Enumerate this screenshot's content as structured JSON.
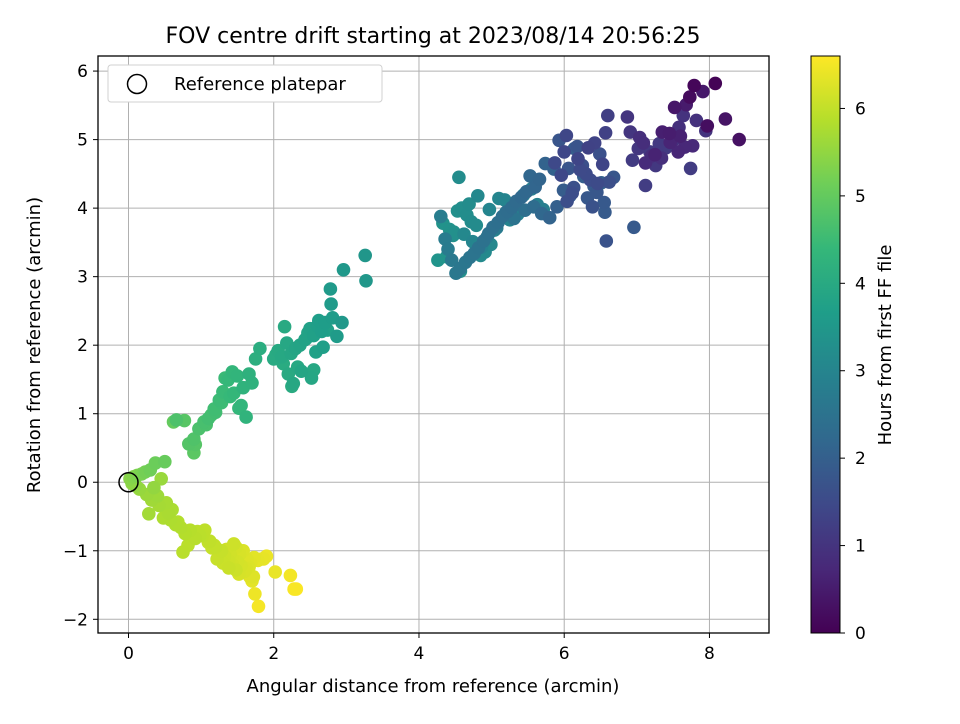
{
  "chart_data": {
    "type": "scatter",
    "title": "FOV centre drift starting at 2023/08/14 20:56:25",
    "xlabel": "Angular distance from reference (arcmin)",
    "ylabel": "Rotation from reference (arcmin)",
    "xlim": [
      -0.42,
      8.82
    ],
    "ylim": [
      -2.2,
      6.22
    ],
    "xticks": [
      "0",
      "2",
      "4",
      "6",
      "8"
    ],
    "yticks": [
      "−2",
      "−1",
      "0",
      "1",
      "2",
      "3",
      "4",
      "5",
      "6"
    ],
    "grid": true,
    "legend": {
      "placement": "top-left",
      "entries": [
        "Reference platepar"
      ]
    },
    "reference_point": {
      "label": "Reference platepar",
      "x": 0,
      "y": 0
    },
    "colorbar": {
      "label": "Hours from first FF file",
      "range": [
        0,
        6.6
      ],
      "ticks": [
        "0",
        "1",
        "2",
        "3",
        "4",
        "5",
        "6"
      ],
      "colormap": "viridis"
    },
    "series": [
      {
        "x": [
          8.08,
          7.79,
          7.73,
          7.97,
          8.41,
          8.22,
          7.52,
          7.91,
          7.68,
          7.45,
          7.35,
          7.6,
          7.25,
          7.46,
          7.57,
          7.66,
          7.77,
          7.12,
          7.2,
          7.09,
          7.04,
          7.34,
          7.58,
          7.51,
          7.82,
          7.64,
          7.95,
          6.87,
          6.91,
          7.02,
          7.26,
          7.18,
          7.31,
          7.4,
          6.94,
          7.74,
          7.12
        ],
        "y": [
          5.82,
          5.79,
          5.62,
          5.2,
          5.0,
          5.3,
          5.47,
          5.7,
          5.51,
          5.09,
          5.11,
          5.05,
          4.78,
          4.96,
          4.82,
          4.89,
          4.91,
          4.66,
          4.76,
          4.95,
          5.03,
          4.73,
          5.18,
          5.0,
          5.28,
          5.35,
          5.13,
          5.33,
          5.11,
          4.87,
          4.62,
          4.82,
          4.94,
          4.88,
          4.7,
          4.58,
          4.33
        ],
        "hours": [
          0.05,
          0.1,
          0.18,
          0.24,
          0.3,
          0.35,
          0.4,
          0.44,
          0.48,
          0.52,
          0.56,
          0.6,
          0.64,
          0.68,
          0.72,
          0.74,
          0.76,
          0.8,
          0.84,
          0.86,
          0.88,
          0.9,
          0.92,
          0.94,
          0.96,
          0.98,
          1.0,
          1.02,
          1.04,
          1.06,
          1.08,
          1.1,
          1.12,
          1.14,
          1.16,
          1.18,
          1.2
        ]
      },
      {
        "x": [
          6.6,
          6.57,
          6.33,
          6.42,
          6.53,
          6.19,
          6.03,
          6.0,
          5.96,
          5.87,
          6.22,
          6.3,
          6.46,
          6.36,
          6.11,
          6.04,
          6.62,
          6.49,
          6.25,
          6.13,
          6.39,
          6.58,
          6.18,
          5.93,
          6.06,
          6.68,
          6.45,
          6.32,
          6.55,
          6.96,
          6.56,
          6.41,
          6.14,
          5.99,
          6.08,
          6.27,
          6.51,
          5.9
        ],
        "y": [
          5.35,
          5.1,
          4.88,
          4.95,
          4.64,
          4.72,
          5.06,
          4.82,
          4.48,
          4.66,
          4.56,
          4.5,
          4.36,
          4.41,
          4.22,
          4.1,
          4.38,
          4.79,
          4.62,
          4.3,
          4.02,
          3.52,
          4.9,
          4.99,
          4.58,
          4.45,
          4.23,
          4.15,
          4.08,
          3.72,
          3.94,
          4.32,
          4.87,
          4.26,
          4.18,
          4.46,
          4.37,
          4.02
        ],
        "hours": [
          1.25,
          1.28,
          1.31,
          1.34,
          1.36,
          1.38,
          1.4,
          1.42,
          1.44,
          1.46,
          1.48,
          1.5,
          1.52,
          1.54,
          1.56,
          1.58,
          1.6,
          1.62,
          1.64,
          1.66,
          1.68,
          1.7,
          1.72,
          1.74,
          1.76,
          1.78,
          1.8,
          1.82,
          1.84,
          1.86,
          1.88,
          1.9,
          1.92,
          1.94,
          1.96,
          1.98,
          2.0,
          2.02
        ]
      },
      {
        "x": [
          5.86,
          5.74,
          5.66,
          5.6,
          5.53,
          5.48,
          5.41,
          5.34,
          5.28,
          5.22,
          5.15,
          5.09,
          5.02,
          4.96,
          4.89,
          4.82,
          4.76,
          4.7,
          4.64,
          4.57,
          4.51,
          4.45,
          4.4,
          4.36,
          4.3,
          5.71,
          5.63,
          5.55,
          5.44,
          5.36,
          5.25,
          5.18,
          5.1,
          5.04,
          4.99,
          4.91,
          4.85,
          4.79,
          4.72,
          4.66,
          4.59,
          4.53,
          4.48,
          4.42,
          4.33,
          4.26,
          5.8,
          5.69,
          5.58,
          5.46,
          5.31,
          5.2,
          5.07,
          4.94,
          4.86,
          4.74,
          4.62,
          4.55,
          4.47,
          4.38,
          4.57,
          4.69,
          4.81,
          4.97
        ],
        "y": [
          4.57,
          4.65,
          4.42,
          4.31,
          4.47,
          4.24,
          4.16,
          4.1,
          4.01,
          3.95,
          3.88,
          3.79,
          3.72,
          3.63,
          3.52,
          3.42,
          3.34,
          3.28,
          3.21,
          3.12,
          3.05,
          3.24,
          3.4,
          3.55,
          3.88,
          3.98,
          4.05,
          4.28,
          4.19,
          3.91,
          3.83,
          4.12,
          4.14,
          3.68,
          3.47,
          3.36,
          3.31,
          3.75,
          3.8,
          3.9,
          4.0,
          3.96,
          3.65,
          3.69,
          3.78,
          3.24,
          3.86,
          3.92,
          4.02,
          3.97,
          3.85,
          3.94,
          3.71,
          3.58,
          3.43,
          3.51,
          3.62,
          4.45,
          3.6,
          3.29,
          3.08,
          4.06,
          4.18,
          3.98
        ],
        "hours": [
          2.06,
          2.09,
          2.12,
          2.15,
          2.18,
          2.21,
          2.24,
          2.27,
          2.3,
          2.33,
          2.36,
          2.39,
          2.42,
          2.45,
          2.48,
          2.51,
          2.54,
          2.57,
          2.6,
          2.63,
          2.66,
          2.69,
          2.72,
          2.75,
          2.78,
          2.81,
          2.84,
          2.87,
          2.9,
          2.93,
          2.96,
          2.99,
          3.02,
          3.05,
          3.08,
          3.11,
          3.14,
          3.17,
          3.2,
          3.23,
          3.26,
          3.29,
          3.32,
          3.35,
          3.38,
          3.41,
          2.1,
          2.2,
          2.3,
          2.4,
          2.5,
          2.6,
          2.7,
          2.8,
          2.9,
          3.0,
          3.1,
          3.2,
          3.3,
          3.4,
          3.3,
          3.2,
          3.1,
          3.0
        ]
      },
      {
        "x": [
          3.26,
          3.27,
          2.96,
          2.78,
          2.79,
          2.81,
          2.71,
          2.66,
          2.6,
          2.55,
          2.5,
          2.43,
          2.36,
          2.3,
          2.24,
          2.18,
          2.11,
          2.06,
          2.0,
          2.94,
          2.87,
          2.68,
          2.58,
          2.47,
          2.38,
          2.27,
          2.2,
          2.13,
          2.03,
          2.52,
          2.62,
          2.74,
          2.45,
          2.33,
          2.25,
          2.15,
          2.55
        ],
        "y": [
          3.31,
          2.94,
          3.1,
          2.82,
          2.6,
          2.4,
          2.33,
          2.2,
          2.28,
          2.14,
          2.24,
          2.08,
          2.0,
          1.95,
          1.88,
          2.03,
          1.83,
          1.92,
          1.8,
          2.33,
          2.13,
          1.97,
          1.9,
          2.18,
          1.62,
          1.44,
          1.58,
          1.73,
          1.86,
          1.52,
          2.36,
          2.22,
          2.1,
          1.68,
          1.4,
          2.27,
          1.64
        ],
        "hours": [
          3.45,
          3.48,
          3.52,
          3.56,
          3.59,
          3.62,
          3.65,
          3.68,
          3.71,
          3.74,
          3.77,
          3.8,
          3.83,
          3.86,
          3.89,
          3.92,
          3.95,
          3.98,
          4.01,
          3.5,
          3.6,
          3.7,
          3.75,
          3.82,
          3.88,
          3.94,
          4.0,
          4.05,
          4.08,
          3.9,
          3.66,
          3.72,
          3.85,
          3.96,
          4.02,
          3.99,
          3.93
        ]
      },
      {
        "x": [
          1.81,
          1.75,
          1.66,
          1.58,
          1.5,
          1.43,
          1.37,
          1.3,
          1.25,
          1.18,
          1.1,
          1.04,
          0.97,
          0.9,
          0.83,
          0.77,
          0.9,
          1.45,
          1.55,
          1.62,
          1.7,
          1.4,
          1.33,
          1.28,
          1.2,
          1.14,
          1.07,
          0.66,
          0.92,
          1.52
        ],
        "y": [
          1.95,
          1.8,
          1.58,
          1.38,
          1.55,
          1.61,
          1.49,
          1.32,
          1.2,
          1.07,
          0.93,
          0.88,
          0.78,
          0.63,
          0.56,
          0.9,
          0.43,
          1.3,
          1.12,
          0.95,
          1.45,
          1.25,
          1.52,
          1.16,
          1.02,
          0.98,
          0.84,
          0.91,
          0.55,
          1.08
        ],
        "hours": [
          4.1,
          4.15,
          4.2,
          4.25,
          4.3,
          4.35,
          4.4,
          4.45,
          4.5,
          4.55,
          4.6,
          4.65,
          4.7,
          4.75,
          4.8,
          4.85,
          4.9,
          4.38,
          4.33,
          4.28,
          4.22,
          4.42,
          4.47,
          4.52,
          4.57,
          4.62,
          4.67,
          4.72,
          4.82,
          4.36
        ]
      },
      {
        "x": [
          0.62,
          0.5,
          0.37,
          0.3,
          0.23,
          0.18,
          0.12,
          0.07,
          0.02,
          0.05,
          0.1,
          0.15,
          0.25,
          0.32,
          0.42,
          0.55,
          0.48,
          0.58,
          0.65,
          0.72,
          0.78,
          0.85,
          0.92,
          0.98,
          0.4,
          0.28,
          0.35,
          0.52,
          0.6,
          0.45,
          0.68
        ],
        "y": [
          0.88,
          0.3,
          0.28,
          0.18,
          0.15,
          0.12,
          0.1,
          0.08,
          0.05,
          -0.02,
          -0.05,
          -0.1,
          -0.18,
          -0.26,
          -0.34,
          -0.45,
          -0.52,
          -0.55,
          -0.62,
          -0.66,
          -0.75,
          -0.7,
          -0.82,
          -0.78,
          -0.2,
          -0.46,
          -0.08,
          -0.3,
          -0.4,
          0.05,
          -0.58
        ],
        "hours": [
          5.0,
          5.05,
          5.1,
          5.15,
          5.2,
          5.25,
          5.3,
          5.35,
          5.4,
          5.45,
          5.5,
          5.55,
          5.6,
          5.65,
          5.7,
          5.75,
          5.78,
          5.8,
          5.82,
          5.84,
          5.86,
          5.88,
          5.9,
          5.92,
          5.62,
          5.68,
          5.52,
          5.72,
          5.76,
          5.58,
          5.85
        ]
      },
      {
        "x": [
          1.02,
          1.1,
          1.18,
          1.25,
          1.32,
          1.38,
          1.43,
          1.48,
          1.53,
          1.58,
          1.63,
          1.68,
          1.73,
          1.78,
          1.83,
          1.9,
          1.48,
          1.38,
          1.28,
          1.2,
          1.12,
          1.05,
          0.95,
          0.88,
          0.82,
          0.75,
          1.35,
          1.42,
          1.55,
          1.6,
          1.66,
          1.72,
          1.45,
          1.3,
          1.22,
          1.15,
          1.52,
          1.62,
          1.4,
          1.5
        ],
        "y": [
          -0.78,
          -0.88,
          -0.92,
          -1.02,
          -1.08,
          -1.15,
          -1.2,
          -0.95,
          -1.05,
          -1.0,
          -1.12,
          -1.18,
          -1.1,
          -1.14,
          -1.12,
          -1.08,
          -1.28,
          -1.25,
          -1.0,
          -0.95,
          -0.86,
          -0.7,
          -0.72,
          -0.82,
          -0.92,
          -1.02,
          -0.98,
          -1.1,
          -1.22,
          -1.3,
          -1.24,
          -1.38,
          -0.9,
          -1.18,
          -1.12,
          -0.96,
          -1.34,
          -1.26,
          -1.05,
          -1.16
        ],
        "hours": [
          5.95,
          6.0,
          6.03,
          6.06,
          6.09,
          6.12,
          6.15,
          6.18,
          6.21,
          6.24,
          6.27,
          6.3,
          6.33,
          6.36,
          6.39,
          6.42,
          6.1,
          6.07,
          6.04,
          6.01,
          5.98,
          5.96,
          5.94,
          5.93,
          5.92,
          5.91,
          6.13,
          6.16,
          6.19,
          6.22,
          6.25,
          6.28,
          6.11,
          6.08,
          6.05,
          6.02,
          6.2,
          6.23,
          6.14,
          6.17
        ]
      },
      {
        "x": [
          1.67,
          1.74,
          2.02,
          2.23,
          2.28,
          2.31,
          1.79,
          1.7,
          1.86
        ],
        "y": [
          -1.38,
          -1.63,
          -1.31,
          -1.36,
          -1.56,
          -1.56,
          -1.81,
          -1.44,
          -1.12
        ],
        "hours": [
          6.3,
          6.45,
          6.4,
          6.5,
          6.55,
          6.58,
          6.52,
          6.35,
          6.38
        ]
      }
    ]
  }
}
